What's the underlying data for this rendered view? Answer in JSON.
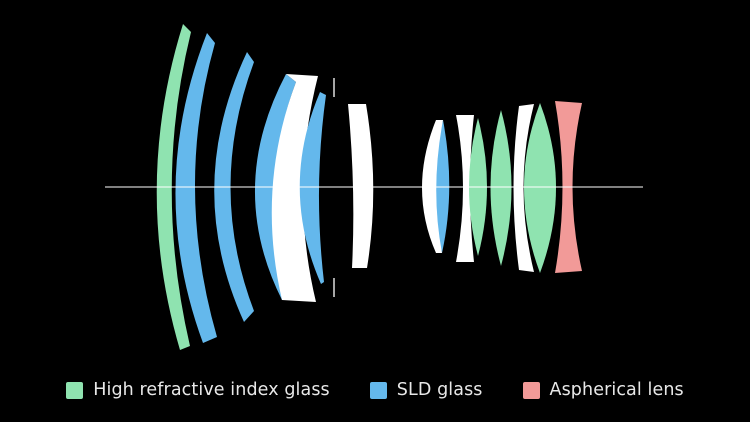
{
  "colors": {
    "background": "#000000",
    "high_refractive_index_glass": "#8fe3b0",
    "sld_glass": "#64b8ec",
    "aspherical_lens": "#f29a98",
    "standard_glass": "#ffffff",
    "optical_axis": "#ffffff"
  },
  "legend": {
    "items": [
      {
        "key": "high_refractive_index_glass",
        "label": "High refractive index glass",
        "color": "#8fe3b0"
      },
      {
        "key": "sld_glass",
        "label": "SLD glass",
        "color": "#64b8ec"
      },
      {
        "key": "aspherical_lens",
        "label": "Aspherical lens",
        "color": "#f29a98"
      }
    ]
  },
  "lens_elements": [
    {
      "index": 1,
      "glass": "high_refractive_index_glass"
    },
    {
      "index": 2,
      "glass": "sld_glass"
    },
    {
      "index": 3,
      "glass": "sld_glass"
    },
    {
      "index": 4,
      "glass": "sld_glass"
    },
    {
      "index": 5,
      "glass": "standard_glass"
    },
    {
      "index": 6,
      "glass": "sld_glass"
    },
    {
      "index": 7,
      "glass": "standard_glass"
    },
    {
      "index": 8,
      "glass": "standard_glass"
    },
    {
      "index": 9,
      "glass": "sld_glass"
    },
    {
      "index": 10,
      "glass": "standard_glass"
    },
    {
      "index": 11,
      "glass": "high_refractive_index_glass"
    },
    {
      "index": 12,
      "glass": "high_refractive_index_glass"
    },
    {
      "index": 13,
      "glass": "standard_glass"
    },
    {
      "index": 14,
      "glass": "high_refractive_index_glass"
    },
    {
      "index": 15,
      "glass": "aspherical_lens"
    }
  ]
}
